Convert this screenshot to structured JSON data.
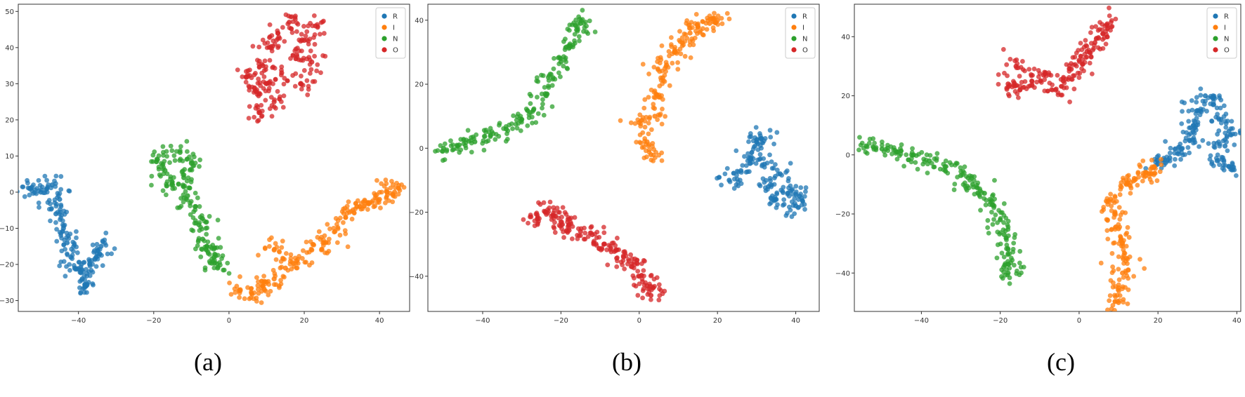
{
  "figure": {
    "captions": [
      "(a)",
      "(b)",
      "(c)"
    ]
  },
  "colors": {
    "R": "#1f77b4",
    "I": "#ff7f0e",
    "N": "#2ca02c",
    "O": "#d62728"
  },
  "chart_data": [
    {
      "type": "scatter",
      "caption": "(a)",
      "xlim": [
        -56,
        48
      ],
      "ylim": [
        -33,
        52
      ],
      "xticks": [
        -40,
        -20,
        0,
        20,
        40
      ],
      "yticks": [
        -30,
        -20,
        -10,
        0,
        10,
        20,
        30,
        40,
        50
      ],
      "grid": false,
      "legend": {
        "placement": "top-right",
        "entries": [
          "R",
          "I",
          "N",
          "O"
        ]
      },
      "series": [
        {
          "name": "R",
          "color": "#1f77b4",
          "points": [
            [
              -53,
              1
            ],
            [
              -50,
              0
            ],
            [
              -47,
              2
            ],
            [
              -45,
              -2
            ],
            [
              -46,
              -6
            ],
            [
              -44,
              -10
            ],
            [
              -43,
              -14
            ],
            [
              -42,
              -18
            ],
            [
              -41,
              -21
            ],
            [
              -39,
              -24
            ],
            [
              -38,
              -26
            ],
            [
              -37,
              -20
            ],
            [
              -35,
              -17
            ],
            [
              -34,
              -15
            ]
          ]
        },
        {
          "name": "I",
          "color": "#ff7f0e",
          "points": [
            [
              3,
              -27
            ],
            [
              6,
              -28
            ],
            [
              9,
              -26
            ],
            [
              12,
              -24
            ],
            [
              15,
              -21
            ],
            [
              18,
              -19
            ],
            [
              22,
              -16
            ],
            [
              25,
              -14
            ],
            [
              28,
              -11
            ],
            [
              31,
              -7
            ],
            [
              34,
              -4
            ],
            [
              37,
              -3
            ],
            [
              40,
              -2
            ],
            [
              42,
              0
            ],
            [
              44,
              0
            ],
            [
              12,
              -16
            ]
          ]
        },
        {
          "name": "N",
          "color": "#2ca02c",
          "points": [
            [
              -19,
              9
            ],
            [
              -17,
              6
            ],
            [
              -15,
              2
            ],
            [
              -13,
              11
            ],
            [
              -12,
              4
            ],
            [
              -11,
              -1
            ],
            [
              -10,
              8
            ],
            [
              -9,
              -4
            ],
            [
              -8,
              -9
            ],
            [
              -7,
              -13
            ],
            [
              -6,
              -16
            ],
            [
              -4,
              -18
            ],
            [
              -3,
              -21
            ]
          ]
        },
        {
          "name": "O",
          "color": "#d62728",
          "points": [
            [
              5,
              32
            ],
            [
              7,
              28
            ],
            [
              8,
              22
            ],
            [
              9,
              35
            ],
            [
              10,
              30
            ],
            [
              11,
              40
            ],
            [
              12,
              25
            ],
            [
              13,
              44
            ],
            [
              14,
              33
            ],
            [
              16,
              47
            ],
            [
              18,
              38
            ],
            [
              19,
              30
            ],
            [
              20,
              42
            ],
            [
              22,
              36
            ],
            [
              23,
              46
            ]
          ]
        }
      ]
    },
    {
      "type": "scatter",
      "caption": "(b)",
      "xlim": [
        -54,
        46
      ],
      "ylim": [
        -51,
        45
      ],
      "xticks": [
        -40,
        -20,
        0,
        20,
        40
      ],
      "yticks": [
        -40,
        -20,
        0,
        20,
        40
      ],
      "grid": false,
      "legend": {
        "placement": "top-right",
        "entries": [
          "R",
          "I",
          "N",
          "O"
        ]
      },
      "series": [
        {
          "name": "R",
          "color": "#1f77b4",
          "points": [
            [
              23,
              -10
            ],
            [
              26,
              -7
            ],
            [
              28,
              -3
            ],
            [
              30,
              2
            ],
            [
              32,
              -5
            ],
            [
              33,
              -12
            ],
            [
              35,
              -16
            ],
            [
              36,
              -8
            ],
            [
              38,
              -14
            ],
            [
              40,
              -18
            ],
            [
              41,
              -15
            ],
            [
              31,
              3
            ]
          ]
        },
        {
          "name": "I",
          "color": "#ff7f0e",
          "points": [
            [
              0,
              8
            ],
            [
              2,
              2
            ],
            [
              3,
              -2
            ],
            [
              4,
              10
            ],
            [
              5,
              16
            ],
            [
              6,
              22
            ],
            [
              7,
              26
            ],
            [
              9,
              30
            ],
            [
              11,
              33
            ],
            [
              13,
              36
            ],
            [
              15,
              38
            ],
            [
              18,
              39
            ],
            [
              20,
              40
            ]
          ]
        },
        {
          "name": "N",
          "color": "#2ca02c",
          "points": [
            [
              -50,
              0
            ],
            [
              -46,
              1
            ],
            [
              -42,
              2
            ],
            [
              -38,
              4
            ],
            [
              -34,
              6
            ],
            [
              -30,
              9
            ],
            [
              -27,
              12
            ],
            [
              -24,
              17
            ],
            [
              -22,
              22
            ],
            [
              -20,
              27
            ],
            [
              -18,
              32
            ],
            [
              -16,
              37
            ],
            [
              -15,
              39
            ]
          ]
        },
        {
          "name": "O",
          "color": "#d62728",
          "points": [
            [
              -26,
              -22
            ],
            [
              -24,
              -20
            ],
            [
              -22,
              -21
            ],
            [
              -20,
              -23
            ],
            [
              -18,
              -24
            ],
            [
              -15,
              -26
            ],
            [
              -12,
              -27
            ],
            [
              -9,
              -30
            ],
            [
              -6,
              -32
            ],
            [
              -4,
              -34
            ],
            [
              -2,
              -37
            ],
            [
              0,
              -40
            ],
            [
              2,
              -43
            ],
            [
              3,
              -46
            ]
          ]
        }
      ]
    },
    {
      "type": "scatter",
      "caption": "(c)",
      "xlim": [
        -57,
        41
      ],
      "ylim": [
        -53,
        51
      ],
      "xticks": [
        -40,
        -20,
        0,
        20,
        40
      ],
      "yticks": [
        -40,
        -20,
        0,
        20,
        40
      ],
      "grid": false,
      "legend": {
        "placement": "top-right",
        "entries": [
          "R",
          "I",
          "N",
          "O"
        ]
      },
      "series": [
        {
          "name": "R",
          "color": "#1f77b4",
          "points": [
            [
              20,
              -3
            ],
            [
              23,
              -1
            ],
            [
              26,
              2
            ],
            [
              28,
              5
            ],
            [
              29,
              10
            ],
            [
              30,
              15
            ],
            [
              32,
              20
            ],
            [
              34,
              17
            ],
            [
              36,
              12
            ],
            [
              38,
              8
            ],
            [
              37,
              3
            ],
            [
              35,
              -2
            ],
            [
              38,
              -4
            ]
          ]
        },
        {
          "name": "I",
          "color": "#ff7f0e",
          "points": [
            [
              8,
              -15
            ],
            [
              9,
              -20
            ],
            [
              10,
              -25
            ],
            [
              11,
              -30
            ],
            [
              12,
              -35
            ],
            [
              11,
              -40
            ],
            [
              10,
              -45
            ],
            [
              10,
              -50
            ],
            [
              12,
              -10
            ],
            [
              14,
              -8
            ],
            [
              17,
              -6
            ],
            [
              19,
              -4
            ]
          ]
        },
        {
          "name": "N",
          "color": "#2ca02c",
          "points": [
            [
              -54,
              3
            ],
            [
              -50,
              2
            ],
            [
              -46,
              1
            ],
            [
              -42,
              0
            ],
            [
              -38,
              -2
            ],
            [
              -34,
              -4
            ],
            [
              -30,
              -7
            ],
            [
              -27,
              -10
            ],
            [
              -24,
              -13
            ],
            [
              -22,
              -17
            ],
            [
              -20,
              -22
            ],
            [
              -19,
              -27
            ],
            [
              -18,
              -32
            ],
            [
              -18,
              -37
            ],
            [
              -18,
              -40
            ]
          ]
        },
        {
          "name": "O",
          "color": "#d62728",
          "points": [
            [
              -16,
              30
            ],
            [
              -18,
              24
            ],
            [
              -15,
              22
            ],
            [
              -12,
              25
            ],
            [
              -9,
              27
            ],
            [
              -6,
              22
            ],
            [
              -4,
              25
            ],
            [
              -2,
              29
            ],
            [
              0,
              32
            ],
            [
              2,
              35
            ],
            [
              4,
              38
            ],
            [
              6,
              41
            ],
            [
              7,
              44
            ]
          ]
        }
      ]
    }
  ]
}
